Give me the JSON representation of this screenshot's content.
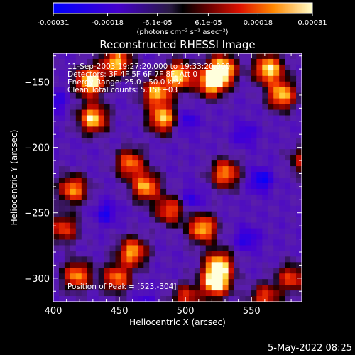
{
  "chart_data": {
    "type": "heatmap",
    "title": "Reconstructed RHESSI Image",
    "xlabel": "Heliocentric X (arcsec)",
    "ylabel": "Heliocentric Y (arcsec)",
    "xlim": [
      400,
      588
    ],
    "ylim": [
      -318,
      -128
    ],
    "x_ticks": [
      400,
      450,
      500,
      550
    ],
    "y_ticks": [
      -150,
      -200,
      -250,
      -300
    ],
    "colorbar": {
      "units": "(photons cm⁻² s⁻¹ asec⁻²)",
      "range": [
        -0.00031,
        0.00031
      ],
      "tick_labels": [
        "-0.00031",
        "-0.00018",
        "-6.1e-05",
        "6.1e-05",
        "0.00018",
        "0.00031"
      ],
      "tick_values": [
        -0.00031,
        -0.00018,
        -6.1e-05,
        6.1e-05,
        0.00018,
        0.00031
      ]
    },
    "annotations": {
      "time": "11-Sep-2003 19:27:20.000 to 19:33:20.000",
      "detectors": "Detectors: 3F 4F 5F 6F 7F 8F, Att 0",
      "energy": "Energy Range: 25.0 - 50.0 keV",
      "clean": "Clean    Total counts: 5.15E+03",
      "peak": "Position of Peak = [523,-304]"
    },
    "peak": [
      523,
      -304
    ],
    "hotspots": [
      {
        "x": 428,
        "y": -150,
        "v": 1.0
      },
      {
        "x": 430,
        "y": -178,
        "v": 0.9
      },
      {
        "x": 448,
        "y": -135,
        "v": 0.85
      },
      {
        "x": 478,
        "y": -158,
        "v": 0.8
      },
      {
        "x": 483,
        "y": -178,
        "v": 0.85
      },
      {
        "x": 495,
        "y": -145,
        "v": 0.9
      },
      {
        "x": 520,
        "y": -150,
        "v": 1.0
      },
      {
        "x": 528,
        "y": -140,
        "v": 0.95
      },
      {
        "x": 563,
        "y": -140,
        "v": 0.95
      },
      {
        "x": 573,
        "y": -160,
        "v": 0.85
      },
      {
        "x": 470,
        "y": -230,
        "v": 0.8
      },
      {
        "x": 458,
        "y": -212,
        "v": 0.7
      },
      {
        "x": 415,
        "y": -232,
        "v": 0.75
      },
      {
        "x": 408,
        "y": -262,
        "v": 0.6
      },
      {
        "x": 488,
        "y": -248,
        "v": 0.65
      },
      {
        "x": 513,
        "y": -262,
        "v": 0.85
      },
      {
        "x": 530,
        "y": -220,
        "v": 0.75
      },
      {
        "x": 525,
        "y": -290,
        "v": 0.9
      },
      {
        "x": 523,
        "y": -304,
        "v": 1.0
      },
      {
        "x": 460,
        "y": -280,
        "v": 0.8
      },
      {
        "x": 448,
        "y": -300,
        "v": 0.7
      },
      {
        "x": 418,
        "y": -298,
        "v": 0.75
      },
      {
        "x": 580,
        "y": -300,
        "v": 0.6
      },
      {
        "x": 560,
        "y": -315,
        "v": 0.6
      },
      {
        "x": 500,
        "y": -315,
        "v": 0.55
      },
      {
        "x": 590,
        "y": -210,
        "v": 0.5
      }
    ],
    "coldspots": [
      {
        "x": 500,
        "y": -180,
        "v": 0.7
      },
      {
        "x": 557,
        "y": -225,
        "v": 0.9
      },
      {
        "x": 440,
        "y": -250,
        "v": 0.7
      },
      {
        "x": 505,
        "y": -240,
        "v": 0.6
      },
      {
        "x": 402,
        "y": -165,
        "v": 0.6
      },
      {
        "x": 547,
        "y": -270,
        "v": 0.7
      },
      {
        "x": 470,
        "y": -320,
        "v": 0.5
      },
      {
        "x": 545,
        "y": -190,
        "v": 0.6
      }
    ]
  },
  "footer": {
    "timestamp": "5-May-2022 08:25"
  }
}
